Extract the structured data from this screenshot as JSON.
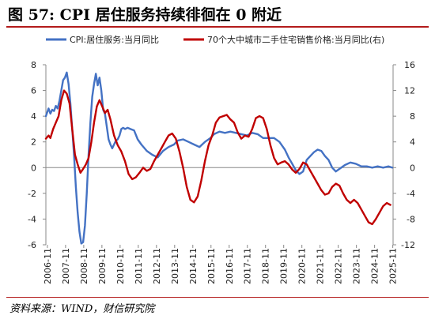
{
  "figure": {
    "title": "图 57:  CPI 居住服务持续徘徊在 0 附近",
    "source": "资料来源：WIND，财信研究院"
  },
  "chart_data": {
    "type": "line",
    "legend_position": "top",
    "grid": false,
    "x_tick_labels": [
      "2006-11",
      "2007-11",
      "2008-11",
      "2009-11",
      "2010-11",
      "2011-11",
      "2012-11",
      "2013-11",
      "2014-11",
      "2015-11",
      "2016-11",
      "2017-11",
      "2018-11",
      "2019-11",
      "2020-11",
      "2021-11",
      "2022-11",
      "2023-11",
      "2024-11",
      "2025-11"
    ],
    "x_range": [
      2006.75,
      2025.85
    ],
    "y_left": {
      "range": [
        -6,
        8
      ],
      "ticks": [
        -6,
        -4,
        -2,
        0,
        2,
        4,
        6,
        8
      ]
    },
    "y_right": {
      "range": [
        -12,
        16
      ],
      "ticks": [
        -12,
        -8,
        -4,
        0,
        4,
        8,
        12,
        16
      ],
      "label": "(右)"
    },
    "series": [
      {
        "name": "CPI:居住服务:当月同比",
        "axis": "left",
        "color": "#4472c4",
        "x": [
          2006.75,
          2006.9,
          2007.0,
          2007.1,
          2007.2,
          2007.3,
          2007.4,
          2007.5,
          2007.6,
          2007.7,
          2007.8,
          2007.9,
          2008.0,
          2008.1,
          2008.2,
          2008.3,
          2008.4,
          2008.5,
          2008.6,
          2008.7,
          2008.8,
          2008.9,
          2009.0,
          2009.1,
          2009.2,
          2009.3,
          2009.4,
          2009.5,
          2009.6,
          2009.7,
          2009.8,
          2009.9,
          2010.0,
          2010.1,
          2010.2,
          2010.3,
          2010.4,
          2010.5,
          2010.6,
          2010.7,
          2010.8,
          2010.9,
          2011.0,
          2011.1,
          2011.25,
          2011.4,
          2011.6,
          2011.8,
          2012.0,
          2012.3,
          2012.6,
          2012.9,
          2013.2,
          2013.5,
          2013.8,
          2014.0,
          2014.3,
          2014.6,
          2014.9,
          2015.2,
          2015.5,
          2015.8,
          2016.0,
          2016.3,
          2016.6,
          2016.9,
          2017.2,
          2017.5,
          2017.8,
          2018.1,
          2018.4,
          2018.7,
          2019.0,
          2019.3,
          2019.6,
          2019.9,
          2020.1,
          2020.3,
          2020.5,
          2020.7,
          2020.9,
          2021.1,
          2021.3,
          2021.5,
          2021.7,
          2021.9,
          2022.1,
          2022.3,
          2022.5,
          2022.7,
          2022.9,
          2023.2,
          2023.5,
          2023.8,
          2024.1,
          2024.4,
          2024.7,
          2025.0,
          2025.3,
          2025.6,
          2025.8
        ],
        "values": [
          4.0,
          4.6,
          4.2,
          4.5,
          4.4,
          4.8,
          4.6,
          5.2,
          6.0,
          6.8,
          7.0,
          7.4,
          6.5,
          5.0,
          3.0,
          1.0,
          -1.5,
          -3.5,
          -5.0,
          -5.9,
          -5.8,
          -4.5,
          -2.0,
          1.0,
          3.5,
          5.5,
          6.5,
          7.3,
          6.4,
          7.0,
          6.0,
          4.5,
          4.2,
          3.2,
          2.2,
          1.8,
          1.5,
          1.8,
          2.1,
          2.2,
          2.5,
          3.0,
          3.1,
          3.0,
          3.1,
          3.0,
          2.9,
          2.2,
          1.8,
          1.3,
          1.0,
          0.8,
          1.3,
          1.6,
          1.8,
          2.1,
          2.2,
          2.0,
          1.8,
          1.6,
          2.0,
          2.3,
          2.6,
          2.8,
          2.7,
          2.8,
          2.7,
          2.6,
          2.5,
          2.7,
          2.6,
          2.3,
          2.3,
          2.3,
          2.0,
          1.4,
          0.8,
          0.3,
          -0.2,
          -0.5,
          -0.3,
          0.6,
          0.9,
          1.2,
          1.4,
          1.3,
          0.9,
          0.6,
          0.0,
          -0.3,
          -0.1,
          0.2,
          0.4,
          0.3,
          0.1,
          0.1,
          0.0,
          0.1,
          0.0,
          0.1,
          0.0
        ]
      },
      {
        "name": "70个大中城市二手住宅销售价格:当月同比(右)",
        "axis": "right",
        "color": "#c00000",
        "x": [
          2006.75,
          2006.9,
          2007.0,
          2007.15,
          2007.3,
          2007.45,
          2007.6,
          2007.75,
          2007.9,
          2008.05,
          2008.2,
          2008.35,
          2008.5,
          2008.65,
          2008.8,
          2008.95,
          2009.1,
          2009.25,
          2009.4,
          2009.55,
          2009.7,
          2009.85,
          2010.0,
          2010.15,
          2010.3,
          2010.5,
          2010.7,
          2010.9,
          2011.1,
          2011.3,
          2011.5,
          2011.7,
          2011.9,
          2012.1,
          2012.3,
          2012.5,
          2012.7,
          2012.9,
          2013.1,
          2013.3,
          2013.5,
          2013.7,
          2013.9,
          2014.1,
          2014.3,
          2014.5,
          2014.7,
          2014.9,
          2015.1,
          2015.3,
          2015.5,
          2015.7,
          2015.9,
          2016.1,
          2016.3,
          2016.5,
          2016.7,
          2016.9,
          2017.1,
          2017.3,
          2017.5,
          2017.7,
          2017.9,
          2018.1,
          2018.3,
          2018.5,
          2018.7,
          2018.9,
          2019.1,
          2019.3,
          2019.5,
          2019.7,
          2019.9,
          2020.1,
          2020.3,
          2020.5,
          2020.7,
          2020.9,
          2021.1,
          2021.3,
          2021.5,
          2021.7,
          2021.9,
          2022.1,
          2022.3,
          2022.5,
          2022.7,
          2022.9,
          2023.1,
          2023.3,
          2023.5,
          2023.7,
          2023.9,
          2024.1,
          2024.3,
          2024.5,
          2024.7,
          2024.9,
          2025.1,
          2025.3,
          2025.5,
          2025.7
        ],
        "values": [
          4.5,
          5.0,
          4.6,
          6.0,
          7.0,
          8.0,
          10.5,
          12.0,
          11.5,
          10.0,
          6.0,
          2.0,
          0.5,
          -0.8,
          -0.2,
          0.5,
          1.5,
          4.0,
          7.0,
          9.5,
          10.5,
          9.5,
          8.5,
          9.0,
          7.5,
          5.0,
          3.5,
          2.5,
          1.0,
          -1.0,
          -1.8,
          -1.5,
          -0.8,
          0.0,
          -0.5,
          -0.2,
          1.0,
          2.0,
          3.0,
          4.0,
          5.0,
          5.3,
          4.5,
          2.5,
          0.0,
          -3.0,
          -5.0,
          -5.4,
          -4.5,
          -2.0,
          1.0,
          3.5,
          5.0,
          7.0,
          7.8,
          8.0,
          8.2,
          7.5,
          7.0,
          5.5,
          4.5,
          5.0,
          4.8,
          6.0,
          7.7,
          8.0,
          7.7,
          6.0,
          3.5,
          1.5,
          0.5,
          0.8,
          1.0,
          0.5,
          -0.3,
          -0.8,
          -0.2,
          0.8,
          0.5,
          -0.5,
          -1.5,
          -2.5,
          -3.5,
          -4.2,
          -4.0,
          -3.0,
          -2.5,
          -2.8,
          -4.0,
          -5.0,
          -5.5,
          -5.0,
          -5.5,
          -6.5,
          -7.5,
          -8.5,
          -8.8,
          -8.0,
          -7.0,
          -6.0,
          -5.5,
          -5.8
        ]
      }
    ]
  }
}
